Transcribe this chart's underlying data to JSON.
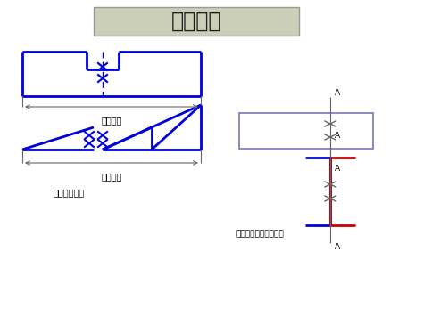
{
  "title": "省略画法",
  "title_fontsize": 18,
  "blue": "#0000dd",
  "light_blue": "#7777bb",
  "red": "#cc0000",
  "gray": "#666666",
  "dark_gray": "#444444",
  "label1": "标注原长",
  "label2": "标注原长",
  "label3": "折断省略画法",
  "label4": "构件局部不同省略画法",
  "label_A": "A",
  "font_size_label": 7,
  "font_size_small": 6,
  "title_box_bg": "#cccfb8",
  "title_box_edge": "#999999"
}
